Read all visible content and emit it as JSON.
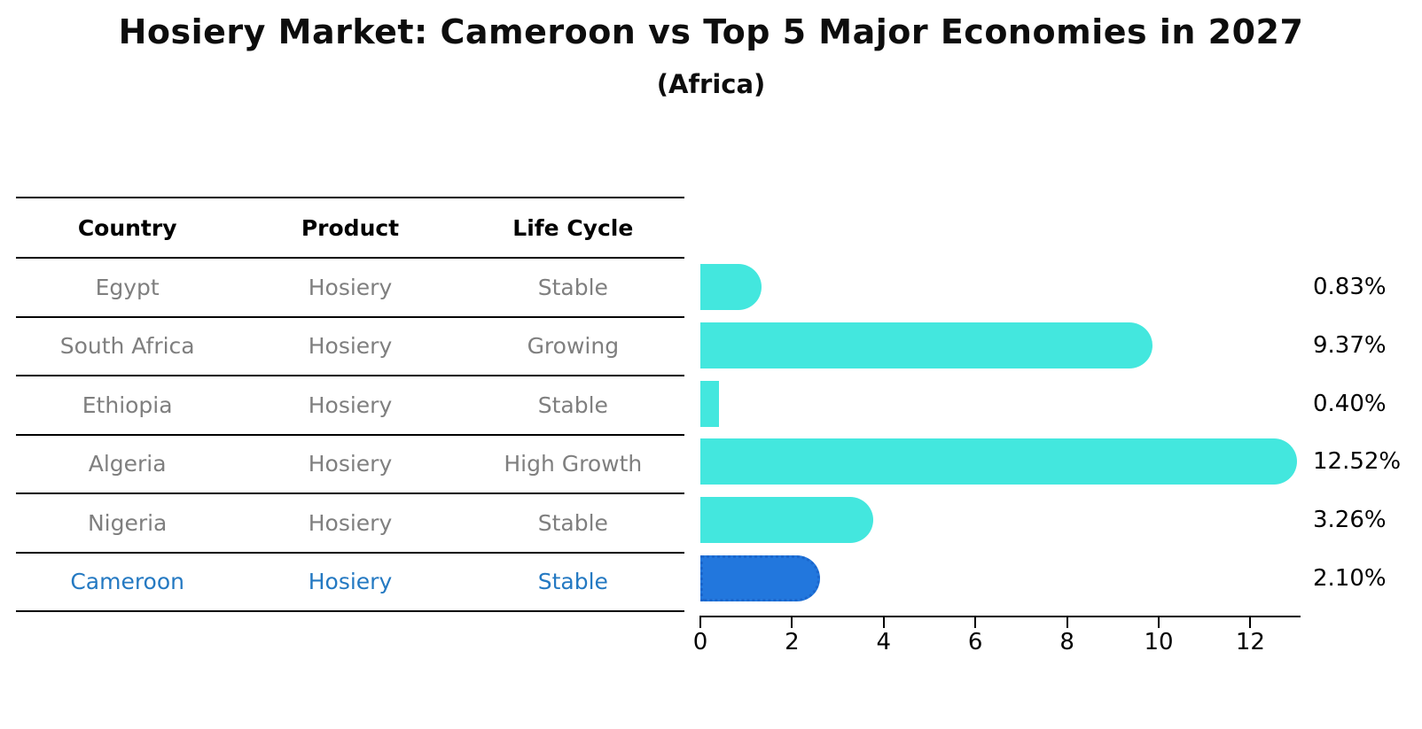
{
  "page": {
    "title": "Hosiery Market: Cameroon vs Top 5 Major Economies in 2027",
    "subtitle": "(Africa)"
  },
  "table": {
    "headers": [
      "Country",
      "Product",
      "Life Cycle"
    ],
    "rows": [
      {
        "country": "Egypt",
        "product": "Hosiery",
        "life_cycle": "Stable",
        "highlight": false
      },
      {
        "country": "South Africa",
        "product": "Hosiery",
        "life_cycle": "Growing",
        "highlight": false
      },
      {
        "country": "Ethiopia",
        "product": "Hosiery",
        "life_cycle": "Stable",
        "highlight": false
      },
      {
        "country": "Algeria",
        "product": "Hosiery",
        "life_cycle": "High Growth",
        "highlight": false
      },
      {
        "country": "Nigeria",
        "product": "Hosiery",
        "life_cycle": "Stable",
        "highlight": false
      },
      {
        "country": "Cameroon",
        "product": "Hosiery",
        "life_cycle": "Stable",
        "highlight": true
      }
    ]
  },
  "chart_data": {
    "type": "bar",
    "orientation": "horizontal",
    "title": "Hosiery Market: Cameroon vs Top 5 Major Economies in 2027",
    "subtitle": "(Africa)",
    "categories": [
      "Egypt",
      "South Africa",
      "Ethiopia",
      "Algeria",
      "Nigeria",
      "Cameroon"
    ],
    "values": [
      0.83,
      9.37,
      0.4,
      12.52,
      3.26,
      2.1
    ],
    "value_labels": [
      "0.83%",
      "9.37%",
      "0.40%",
      "12.52%",
      "3.26%",
      "2.10%"
    ],
    "highlight_category": "Cameroon",
    "x_ticks": [
      "0",
      "2",
      "4",
      "6",
      "8",
      "10",
      "12"
    ],
    "xlim": [
      0,
      13.1
    ],
    "grid": false,
    "legend": false,
    "colors": {
      "bar": "#43e7de",
      "highlight_bar": "#2277dd",
      "highlight_bar_border": "#1a66cc",
      "highlight_text": "#2479c2",
      "row_text": "#7f7f7f",
      "header_text": "#000000",
      "axis": "#000000",
      "value_label": "#000000"
    }
  }
}
